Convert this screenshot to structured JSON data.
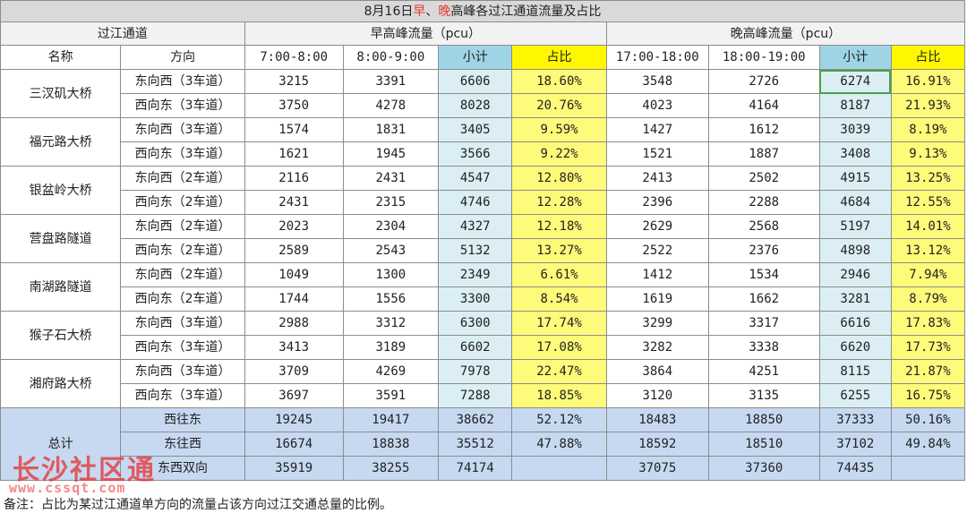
{
  "title": {
    "prefix": "8月16日",
    "morning": "早",
    "sep": "、",
    "evening": "晚",
    "suffix": "高峰各过江通道流量及占比"
  },
  "headers": {
    "channel_group": "过江通道",
    "morning_group": "早高峰流量（pcu）",
    "evening_group": "晚高峰流量（pcu）",
    "name": "名称",
    "direction": "方向",
    "m1": "7:00-8:00",
    "m2": "8:00-9:00",
    "subtotal": "小计",
    "ratio": "占比",
    "e1": "17:00-18:00",
    "e2": "18:00-19:00"
  },
  "bridges": [
    {
      "name": "三汊矶大桥",
      "rows": [
        {
          "dir": "东向西（3车道）",
          "m1": "3215",
          "m2": "3391",
          "ms": "6606",
          "mp": "18.60%",
          "e1": "3548",
          "e2": "2726",
          "es": "6274",
          "ep": "16.91%"
        },
        {
          "dir": "西向东（3车道）",
          "m1": "3750",
          "m2": "4278",
          "ms": "8028",
          "mp": "20.76%",
          "e1": "4023",
          "e2": "4164",
          "es": "8187",
          "ep": "21.93%"
        }
      ]
    },
    {
      "name": "福元路大桥",
      "rows": [
        {
          "dir": "东向西（3车道）",
          "m1": "1574",
          "m2": "1831",
          "ms": "3405",
          "mp": "9.59%",
          "e1": "1427",
          "e2": "1612",
          "es": "3039",
          "ep": "8.19%"
        },
        {
          "dir": "西向东（3车道）",
          "m1": "1621",
          "m2": "1945",
          "ms": "3566",
          "mp": "9.22%",
          "e1": "1521",
          "e2": "1887",
          "es": "3408",
          "ep": "9.13%"
        }
      ]
    },
    {
      "name": "银盆岭大桥",
      "rows": [
        {
          "dir": "东向西（2车道）",
          "m1": "2116",
          "m2": "2431",
          "ms": "4547",
          "mp": "12.80%",
          "e1": "2413",
          "e2": "2502",
          "es": "4915",
          "ep": "13.25%"
        },
        {
          "dir": "西向东（2车道）",
          "m1": "2431",
          "m2": "2315",
          "ms": "4746",
          "mp": "12.28%",
          "e1": "2396",
          "e2": "2288",
          "es": "4684",
          "ep": "12.55%"
        }
      ]
    },
    {
      "name": "营盘路隧道",
      "rows": [
        {
          "dir": "东向西（2车道）",
          "m1": "2023",
          "m2": "2304",
          "ms": "4327",
          "mp": "12.18%",
          "e1": "2629",
          "e2": "2568",
          "es": "5197",
          "ep": "14.01%"
        },
        {
          "dir": "西向东（2车道）",
          "m1": "2589",
          "m2": "2543",
          "ms": "5132",
          "mp": "13.27%",
          "e1": "2522",
          "e2": "2376",
          "es": "4898",
          "ep": "13.12%"
        }
      ]
    },
    {
      "name": "南湖路隧道",
      "rows": [
        {
          "dir": "东向西（2车道）",
          "m1": "1049",
          "m2": "1300",
          "ms": "2349",
          "mp": "6.61%",
          "e1": "1412",
          "e2": "1534",
          "es": "2946",
          "ep": "7.94%"
        },
        {
          "dir": "西向东（2车道）",
          "m1": "1744",
          "m2": "1556",
          "ms": "3300",
          "mp": "8.54%",
          "e1": "1619",
          "e2": "1662",
          "es": "3281",
          "ep": "8.79%"
        }
      ]
    },
    {
      "name": "猴子石大桥",
      "rows": [
        {
          "dir": "东向西（3车道）",
          "m1": "2988",
          "m2": "3312",
          "ms": "6300",
          "mp": "17.74%",
          "e1": "3299",
          "e2": "3317",
          "es": "6616",
          "ep": "17.83%"
        },
        {
          "dir": "西向东（3车道）",
          "m1": "3413",
          "m2": "3189",
          "ms": "6602",
          "mp": "17.08%",
          "e1": "3282",
          "e2": "3338",
          "es": "6620",
          "ep": "17.73%"
        }
      ]
    },
    {
      "name": "湘府路大桥",
      "rows": [
        {
          "dir": "东向西（3车道）",
          "m1": "3709",
          "m2": "4269",
          "ms": "7978",
          "mp": "22.47%",
          "e1": "3864",
          "e2": "4251",
          "es": "8115",
          "ep": "21.87%"
        },
        {
          "dir": "西向东（3车道）",
          "m1": "3697",
          "m2": "3591",
          "ms": "7288",
          "mp": "18.85%",
          "e1": "3120",
          "e2": "3135",
          "es": "6255",
          "ep": "16.75%"
        }
      ]
    }
  ],
  "totals": {
    "label": "总计",
    "rows": [
      {
        "dir": "西往东",
        "m1": "19245",
        "m2": "19417",
        "ms": "38662",
        "mp": "52.12%",
        "e1": "18483",
        "e2": "18850",
        "es": "37333",
        "ep": "50.16%"
      },
      {
        "dir": "东往西",
        "m1": "16674",
        "m2": "18838",
        "ms": "35512",
        "mp": "47.88%",
        "e1": "18592",
        "e2": "18510",
        "es": "37102",
        "ep": "49.84%"
      },
      {
        "dir": "东西双向",
        "m1": "35919",
        "m2": "38255",
        "ms": "74174",
        "mp": "",
        "e1": "37075",
        "e2": "37360",
        "es": "74435",
        "ep": ""
      }
    ]
  },
  "note": "备注：占比为某过江通道单方向的流量占该方向过江交通总量的比例。",
  "watermark": {
    "text": "长沙社区通",
    "url": "www.cssqt.com"
  },
  "colors": {
    "title_bg": "#d9d9d9",
    "subtotal_blue": "#dbeef4",
    "ratio_yellow": "#fffb7a",
    "total_blue": "#c6d9f1",
    "title_red": "#e53b2a"
  }
}
